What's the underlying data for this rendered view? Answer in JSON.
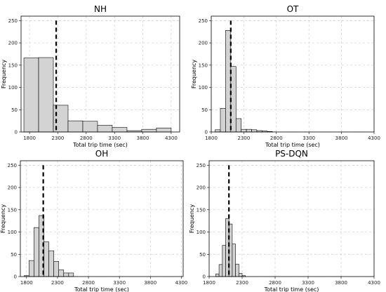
{
  "chart_data": [
    {
      "type": "bar",
      "title": "NH",
      "xlabel": "Total trip time (sec)",
      "ylabel": "Frequency",
      "xlim": [
        1650,
        4450
      ],
      "ylim": [
        0,
        260
      ],
      "xticks": [
        1800,
        2300,
        2800,
        3300,
        3800,
        4300
      ],
      "yticks": [
        0,
        50,
        100,
        150,
        200,
        250
      ],
      "grid": true,
      "bins": [
        {
          "x0": 1700,
          "x1": 1960,
          "count": 166
        },
        {
          "x0": 1960,
          "x1": 2220,
          "count": 167
        },
        {
          "x0": 2220,
          "x1": 2480,
          "count": 60
        },
        {
          "x0": 2480,
          "x1": 2740,
          "count": 25
        },
        {
          "x0": 2740,
          "x1": 3000,
          "count": 24
        },
        {
          "x0": 3000,
          "x1": 3260,
          "count": 15
        },
        {
          "x0": 3260,
          "x1": 3520,
          "count": 10
        },
        {
          "x0": 3520,
          "x1": 3780,
          "count": 3
        },
        {
          "x0": 3780,
          "x1": 4040,
          "count": 6
        },
        {
          "x0": 4040,
          "x1": 4300,
          "count": 9
        }
      ],
      "mean_line": 2270
    },
    {
      "type": "bar",
      "title": "OT",
      "xlabel": "Total trip time (sec)",
      "ylabel": "Frequency",
      "xlim": [
        1800,
        4300
      ],
      "ylim": [
        0,
        260
      ],
      "xticks": [
        1800,
        2300,
        2800,
        3300,
        3800,
        4300
      ],
      "yticks": [
        0,
        50,
        100,
        150,
        200,
        250
      ],
      "grid": true,
      "bins": [
        {
          "x0": 1860,
          "x1": 1940,
          "count": 5
        },
        {
          "x0": 1940,
          "x1": 2020,
          "count": 53
        },
        {
          "x0": 2020,
          "x1": 2100,
          "count": 228
        },
        {
          "x0": 2100,
          "x1": 2180,
          "count": 147
        },
        {
          "x0": 2180,
          "x1": 2260,
          "count": 30
        },
        {
          "x0": 2260,
          "x1": 2340,
          "count": 6
        },
        {
          "x0": 2340,
          "x1": 2420,
          "count": 6
        },
        {
          "x0": 2420,
          "x1": 2500,
          "count": 5
        },
        {
          "x0": 2500,
          "x1": 2580,
          "count": 3
        },
        {
          "x0": 2580,
          "x1": 2660,
          "count": 2
        },
        {
          "x0": 2660,
          "x1": 2740,
          "count": 1
        }
      ],
      "mean_line": 2100
    },
    {
      "type": "bar",
      "title": "OH",
      "xlabel": "Total trip time (sec)",
      "ylabel": "Frequency",
      "xlim": [
        1700,
        4330
      ],
      "ylim": [
        0,
        260
      ],
      "xticks": [
        1800,
        2300,
        2800,
        3300,
        3800,
        4300
      ],
      "yticks": [
        0,
        50,
        100,
        150,
        200,
        250
      ],
      "grid": true,
      "bins": [
        {
          "x0": 1760,
          "x1": 1840,
          "count": 2
        },
        {
          "x0": 1840,
          "x1": 1920,
          "count": 36
        },
        {
          "x0": 1920,
          "x1": 2000,
          "count": 110
        },
        {
          "x0": 2000,
          "x1": 2080,
          "count": 137
        },
        {
          "x0": 2080,
          "x1": 2160,
          "count": 78
        },
        {
          "x0": 2160,
          "x1": 2240,
          "count": 58
        },
        {
          "x0": 2240,
          "x1": 2320,
          "count": 34
        },
        {
          "x0": 2320,
          "x1": 2400,
          "count": 15
        },
        {
          "x0": 2400,
          "x1": 2480,
          "count": 8
        },
        {
          "x0": 2480,
          "x1": 2560,
          "count": 8
        }
      ],
      "mean_line": 2070
    },
    {
      "type": "bar",
      "title": "PS-DQN",
      "xlabel": "Total trip time (sec)",
      "ylabel": "Frequency",
      "xlim": [
        1800,
        4300
      ],
      "ylim": [
        0,
        260
      ],
      "xticks": [
        1800,
        2300,
        2800,
        3300,
        3800,
        4300
      ],
      "yticks": [
        0,
        50,
        100,
        150,
        200,
        250
      ],
      "grid": true,
      "bins": [
        {
          "x0": 1900,
          "x1": 1950,
          "count": 6
        },
        {
          "x0": 1950,
          "x1": 2000,
          "count": 27
        },
        {
          "x0": 2000,
          "x1": 2050,
          "count": 70
        },
        {
          "x0": 2050,
          "x1": 2100,
          "count": 130
        },
        {
          "x0": 2100,
          "x1": 2150,
          "count": 118
        },
        {
          "x0": 2150,
          "x1": 2200,
          "count": 73
        },
        {
          "x0": 2200,
          "x1": 2250,
          "count": 28
        },
        {
          "x0": 2250,
          "x1": 2300,
          "count": 7
        },
        {
          "x0": 2300,
          "x1": 2350,
          "count": 2
        }
      ],
      "mean_line": 2100
    }
  ]
}
